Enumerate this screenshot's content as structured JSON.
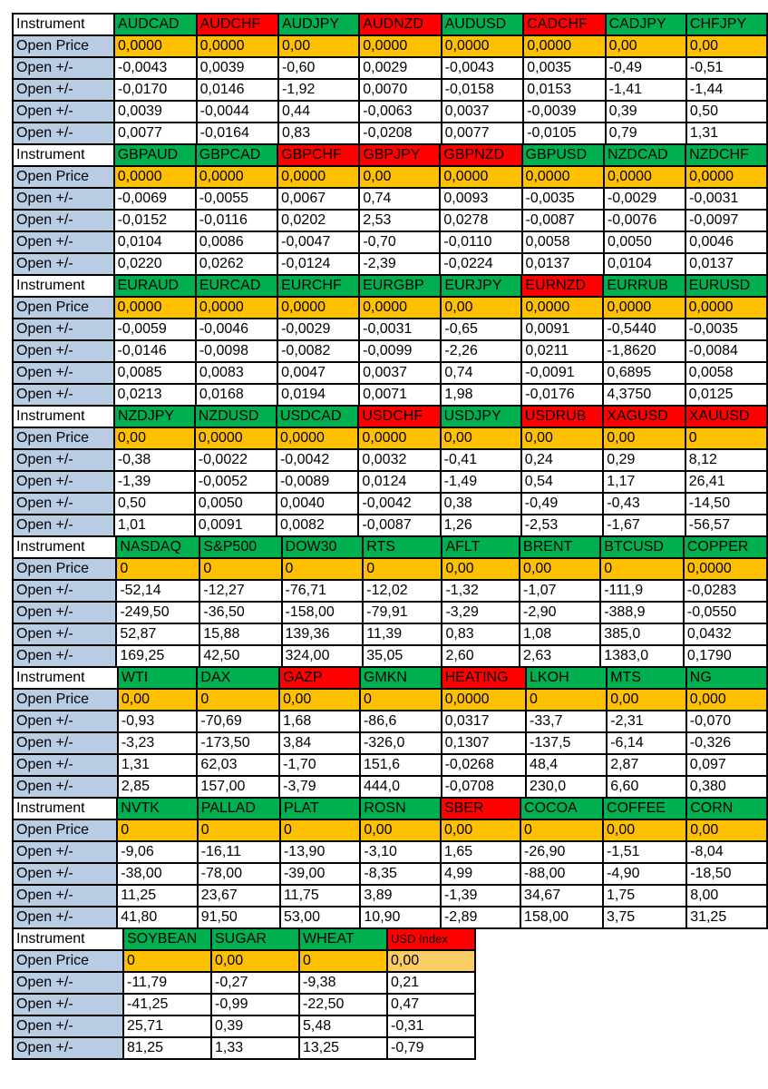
{
  "colors": {
    "header_green": "#00B050",
    "header_red": "#FF0000",
    "price_orange": "#FFC000",
    "price_orange_light": "#FACD64",
    "label_blue": "#B8CCE4",
    "border": "#000000",
    "text": "#000000",
    "cell_white": "#FFFFFF"
  },
  "row_labels": {
    "instrument": "Instrument",
    "open_price": "Open Price",
    "open_delta": "Open +/-"
  },
  "blocks": [
    {
      "columns": [
        {
          "name": "AUDCAD",
          "header": "green",
          "open_price": "0,0000",
          "deltas": [
            "-0,0043",
            "-0,0170",
            "0,0039",
            "0,0077"
          ]
        },
        {
          "name": "AUDCHF",
          "header": "red",
          "open_price": "0,0000",
          "deltas": [
            "0,0039",
            "0,0146",
            "-0,0044",
            "-0,0164"
          ]
        },
        {
          "name": "AUDJPY",
          "header": "green",
          "open_price": "0,00",
          "deltas": [
            "-0,60",
            "-1,92",
            "0,44",
            "0,83"
          ]
        },
        {
          "name": "AUDNZD",
          "header": "red",
          "open_price": "0,0000",
          "deltas": [
            "0,0029",
            "0,0070",
            "-0,0063",
            "-0,0208"
          ]
        },
        {
          "name": "AUDUSD",
          "header": "green",
          "open_price": "0,0000",
          "deltas": [
            "-0,0043",
            "-0,0158",
            "0,0037",
            "0,0077"
          ]
        },
        {
          "name": "CADCHF",
          "header": "red",
          "open_price": "0,0000",
          "deltas": [
            "0,0035",
            "0,0153",
            "-0,0039",
            "-0,0105"
          ]
        },
        {
          "name": "CADJPY",
          "header": "green",
          "open_price": "0,00",
          "deltas": [
            "-0,49",
            "-1,41",
            "0,39",
            "0,79"
          ]
        },
        {
          "name": "CHFJPY",
          "header": "green",
          "open_price": "0,00",
          "deltas": [
            "-0,51",
            "-1,44",
            "0,50",
            "1,31"
          ]
        }
      ]
    },
    {
      "columns": [
        {
          "name": "GBPAUD",
          "header": "green",
          "open_price": "0,0000",
          "deltas": [
            "-0,0069",
            "-0,0152",
            "0,0104",
            "0,0220"
          ]
        },
        {
          "name": "GBPCAD",
          "header": "green",
          "open_price": "0,0000",
          "deltas": [
            "-0,0055",
            "-0,0116",
            "0,0086",
            "0,0262"
          ]
        },
        {
          "name": "GBPCHF",
          "header": "red",
          "open_price": "0,0000",
          "deltas": [
            "0,0067",
            "0,0202",
            "-0,0047",
            "-0,0124"
          ]
        },
        {
          "name": "GBPJPY",
          "header": "red",
          "open_price": "0,00",
          "deltas": [
            "0,74",
            "2,53",
            "-0,70",
            "-2,39"
          ]
        },
        {
          "name": "GBPNZD",
          "header": "red",
          "open_price": "0,0000",
          "deltas": [
            "0,0093",
            "0,0278",
            "-0,0110",
            "-0,0224"
          ]
        },
        {
          "name": "GBPUSD",
          "header": "green",
          "open_price": "0,0000",
          "deltas": [
            "-0,0035",
            "-0,0087",
            "0,0058",
            "0,0137"
          ]
        },
        {
          "name": "NZDCAD",
          "header": "green",
          "open_price": "0,0000",
          "deltas": [
            "-0,0029",
            "-0,0076",
            "0,0050",
            "0,0104"
          ]
        },
        {
          "name": "NZDCHF",
          "header": "green",
          "open_price": "0,0000",
          "deltas": [
            "-0,0031",
            "-0,0097",
            "0,0046",
            "0,0137"
          ]
        }
      ]
    },
    {
      "columns": [
        {
          "name": "EURAUD",
          "header": "green",
          "open_price": "0,0000",
          "deltas": [
            "-0,0059",
            "-0,0146",
            "0,0085",
            "0,0213"
          ]
        },
        {
          "name": "EURCAD",
          "header": "green",
          "open_price": "0,0000",
          "deltas": [
            "-0,0046",
            "-0,0098",
            "0,0083",
            "0,0168"
          ]
        },
        {
          "name": "EURCHF",
          "header": "green",
          "open_price": "0,0000",
          "deltas": [
            "-0,0029",
            "-0,0082",
            "0,0047",
            "0,0194"
          ]
        },
        {
          "name": "EURGBP",
          "header": "green",
          "open_price": "0,0000",
          "deltas": [
            "-0,0031",
            "-0,0099",
            "0,0037",
            "0,0071"
          ]
        },
        {
          "name": "EURJPY",
          "header": "green",
          "open_price": "0,00",
          "deltas": [
            "-0,65",
            "-2,26",
            "0,74",
            "1,98"
          ]
        },
        {
          "name": "EURNZD",
          "header": "red",
          "open_price": "0,0000",
          "deltas": [
            "0,0091",
            "0,0211",
            "-0,0091",
            "-0,0176"
          ]
        },
        {
          "name": "EURRUB",
          "header": "green",
          "open_price": "0,0000",
          "deltas": [
            "-0,5440",
            "-1,8620",
            "0,6895",
            "4,3750"
          ]
        },
        {
          "name": "EURUSD",
          "header": "green",
          "open_price": "0,0000",
          "deltas": [
            "-0,0035",
            "-0,0084",
            "0,0058",
            "0,0125"
          ]
        }
      ]
    },
    {
      "columns": [
        {
          "name": "NZDJPY",
          "header": "green",
          "open_price": "0,00",
          "deltas": [
            "-0,38",
            "-1,39",
            "0,50",
            "1,01"
          ]
        },
        {
          "name": "NZDUSD",
          "header": "green",
          "open_price": "0,0000",
          "deltas": [
            "-0,0022",
            "-0,0052",
            "0,0050",
            "0,0091"
          ]
        },
        {
          "name": "USDCAD",
          "header": "green",
          "open_price": "0,0000",
          "deltas": [
            "-0,0042",
            "-0,0089",
            "0,0040",
            "0,0082"
          ]
        },
        {
          "name": "USDCHF",
          "header": "red",
          "open_price": "0,0000",
          "deltas": [
            "0,0032",
            "0,0124",
            "-0,0042",
            "-0,0087"
          ]
        },
        {
          "name": "USDJPY",
          "header": "green",
          "open_price": "0,00",
          "deltas": [
            "-0,41",
            "-1,49",
            "0,38",
            "1,26"
          ]
        },
        {
          "name": "USDRUB",
          "header": "red",
          "open_price": "0,00",
          "deltas": [
            "0,24",
            "0,54",
            "-0,49",
            "-2,53"
          ]
        },
        {
          "name": "XAGUSD",
          "header": "red",
          "open_price": "0,00",
          "deltas": [
            "0,29",
            "1,17",
            "-0,43",
            "-1,67"
          ]
        },
        {
          "name": "XAUUSD",
          "header": "red",
          "open_price": "0",
          "deltas": [
            "8,12",
            "26,41",
            "-14,50",
            "-56,57"
          ]
        }
      ]
    },
    {
      "columns": [
        {
          "name": "NASDAQ",
          "header": "green",
          "open_price": "0",
          "deltas": [
            "-52,14",
            "-249,50",
            "52,87",
            "169,25"
          ]
        },
        {
          "name": "S&P500",
          "header": "green",
          "open_price": "0",
          "deltas": [
            "-12,27",
            "-36,50",
            "15,88",
            "42,50"
          ]
        },
        {
          "name": "DOW30",
          "header": "green",
          "open_price": "0",
          "deltas": [
            "-76,71",
            "-158,00",
            "139,36",
            "324,00"
          ]
        },
        {
          "name": "RTS",
          "header": "green",
          "open_price": "0",
          "deltas": [
            "-12,02",
            "-79,91",
            "11,39",
            "35,05"
          ]
        },
        {
          "name": "AFLT",
          "header": "green",
          "open_price": "0,00",
          "deltas": [
            "-1,32",
            "-3,29",
            "0,83",
            "2,60"
          ]
        },
        {
          "name": "BRENT",
          "header": "green",
          "open_price": "0,00",
          "deltas": [
            "-1,07",
            "-2,90",
            "1,08",
            "2,63"
          ]
        },
        {
          "name": "BTCUSD",
          "header": "green",
          "open_price": "0",
          "deltas": [
            "-111,9",
            "-388,9",
            "385,0",
            "1383,0"
          ]
        },
        {
          "name": "COPPER",
          "header": "green",
          "open_price": "0,0000",
          "deltas": [
            "-0,0283",
            "-0,0550",
            "0,0432",
            "0,1790"
          ]
        }
      ]
    },
    {
      "columns": [
        {
          "name": "WTI",
          "header": "green",
          "open_price": "0,00",
          "deltas": [
            "-0,93",
            "-3,23",
            "1,31",
            "2,85"
          ]
        },
        {
          "name": "DAX",
          "header": "green",
          "open_price": "0",
          "deltas": [
            "-70,69",
            "-173,50",
            "62,03",
            "157,00"
          ]
        },
        {
          "name": "GAZP",
          "header": "red",
          "open_price": "0,00",
          "deltas": [
            "1,68",
            "3,84",
            "-1,70",
            "-3,79"
          ]
        },
        {
          "name": "GMKN",
          "header": "green",
          "open_price": "0",
          "deltas": [
            "-86,6",
            "-326,0",
            "151,6",
            "444,0"
          ]
        },
        {
          "name": "HEATING",
          "header": "red",
          "open_price": "0,0000",
          "deltas": [
            "0,0317",
            "0,1307",
            "-0,0268",
            "-0,0708"
          ]
        },
        {
          "name": "LKOH",
          "header": "green",
          "open_price": "0",
          "deltas": [
            "-33,7",
            "-137,5",
            "48,4",
            "230,0"
          ]
        },
        {
          "name": "MTS",
          "header": "green",
          "open_price": "0,00",
          "deltas": [
            "-2,31",
            "-6,14",
            "2,87",
            "6,60"
          ]
        },
        {
          "name": "NG",
          "header": "green",
          "open_price": "0,000",
          "deltas": [
            "-0,070",
            "-0,326",
            "0,097",
            "0,380"
          ]
        }
      ]
    },
    {
      "columns": [
        {
          "name": "NVTK",
          "header": "green",
          "open_price": "0",
          "deltas": [
            "-9,06",
            "-38,00",
            "11,25",
            "41,80"
          ]
        },
        {
          "name": "PALLAD",
          "header": "green",
          "open_price": "0",
          "deltas": [
            "-16,11",
            "-78,00",
            "23,67",
            "91,50"
          ]
        },
        {
          "name": "PLAT",
          "header": "green",
          "open_price": "0",
          "deltas": [
            "-13,90",
            "-39,00",
            "11,75",
            "53,00"
          ]
        },
        {
          "name": "ROSN",
          "header": "green",
          "open_price": "0,00",
          "deltas": [
            "-3,10",
            "-8,35",
            "3,89",
            "10,90"
          ]
        },
        {
          "name": "SBER",
          "header": "red",
          "open_price": "0,00",
          "deltas": [
            "1,65",
            "4,99",
            "-1,39",
            "-2,89"
          ]
        },
        {
          "name": "COCOA",
          "header": "green",
          "open_price": "0",
          "deltas": [
            "-26,90",
            "-88,00",
            "34,67",
            "158,00"
          ]
        },
        {
          "name": "COFFEE",
          "header": "green",
          "open_price": "0,00",
          "deltas": [
            "-1,51",
            "-4,90",
            "1,75",
            "3,75"
          ]
        },
        {
          "name": "CORN",
          "header": "green",
          "open_price": "0,00",
          "deltas": [
            "-8,04",
            "-18,50",
            "8,00",
            "31,25"
          ]
        }
      ]
    },
    {
      "columns": [
        {
          "name": "SOYBEAN",
          "header": "green",
          "open_price": "0",
          "deltas": [
            "-11,79",
            "-41,25",
            "25,71",
            "81,25"
          ]
        },
        {
          "name": "SUGAR",
          "header": "green",
          "open_price": "0,00",
          "deltas": [
            "-0,27",
            "-0,99",
            "0,39",
            "1,33"
          ]
        },
        {
          "name": "WHEAT",
          "header": "green",
          "open_price": "0",
          "deltas": [
            "-9,38",
            "-22,50",
            "5,48",
            "13,25"
          ]
        },
        {
          "name": "USD Index",
          "header": "red",
          "open_price": "0,00",
          "price_variant": "light",
          "deltas": [
            "0,21",
            "0,47",
            "-0,31",
            "-0,79"
          ]
        }
      ]
    }
  ]
}
